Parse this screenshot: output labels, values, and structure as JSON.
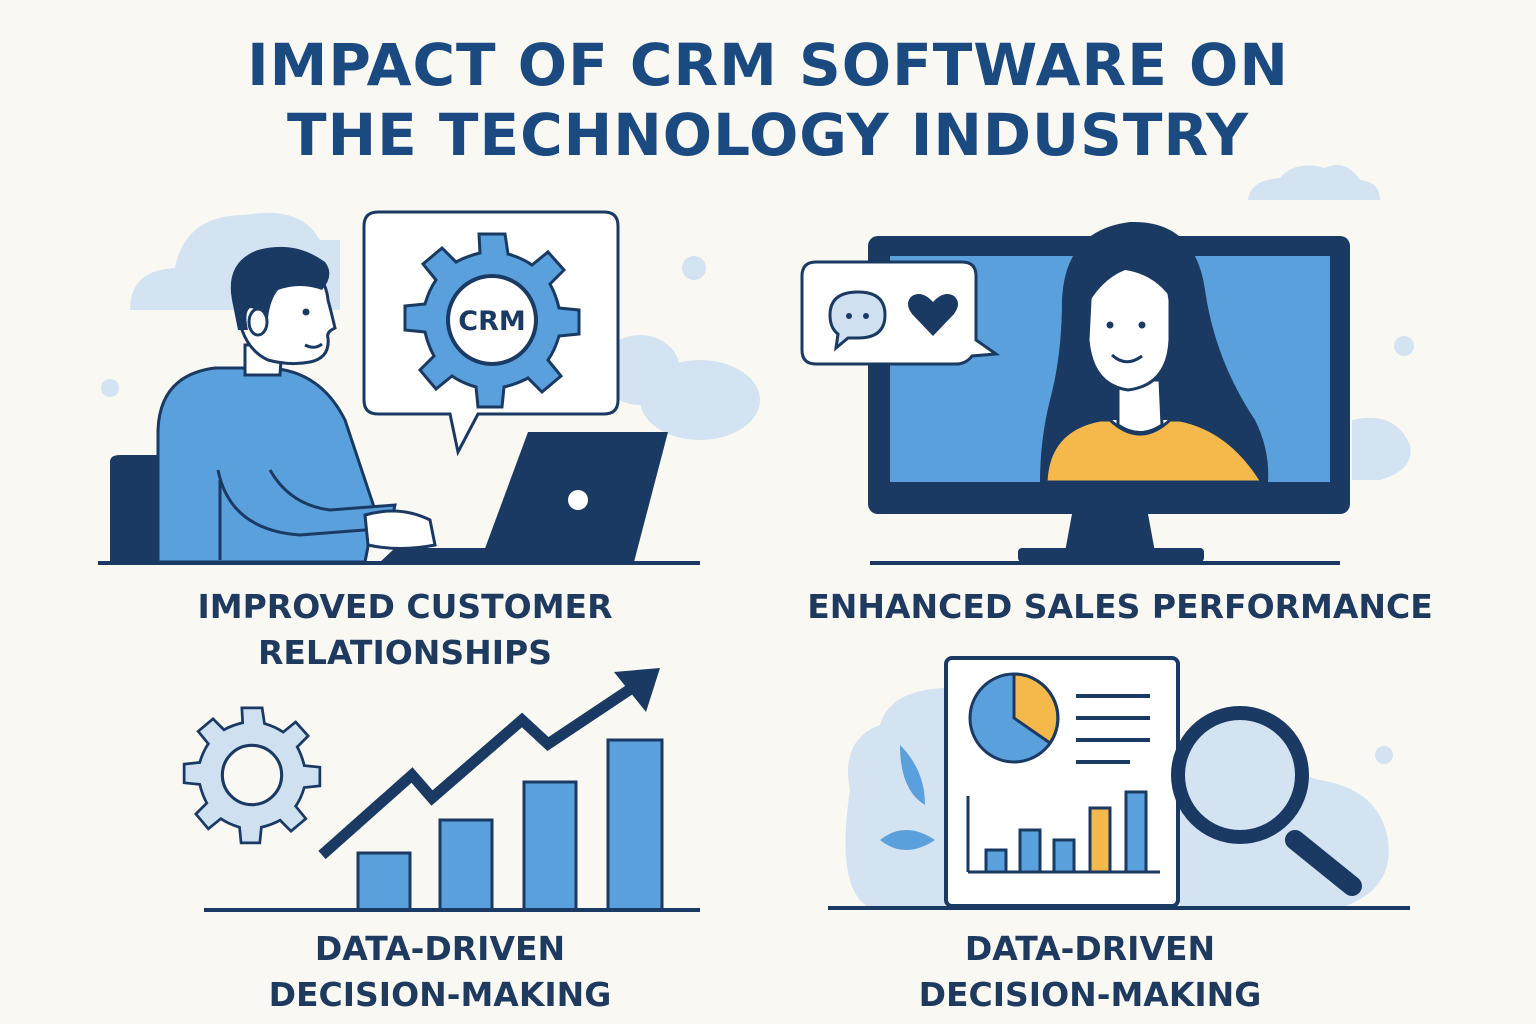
{
  "title": {
    "line1": "IMPACT OF CRM SOFTWARE ON",
    "line2": "THE TECHNOLOGY INDUSTRY"
  },
  "panels": [
    {
      "caption_line1": "IMPROVED CUSTOMER",
      "caption_line2": "RELATIONSHIPS",
      "badge": "CRM",
      "icons": [
        "person-icon",
        "laptop-icon",
        "gear-icon",
        "speech-bubble-icon",
        "cloud-icon"
      ]
    },
    {
      "caption_line1": "ENHANCED SALES PERFORMANCE",
      "icons": [
        "monitor-icon",
        "woman-icon",
        "chat-icon",
        "heart-icon"
      ]
    },
    {
      "caption_line1": "DATA-DRIVEN",
      "caption_line2": "DECISION-MAKING",
      "icons": [
        "gear-icon",
        "trend-arrow-icon",
        "bar-chart-icon"
      ]
    },
    {
      "caption_line1": "DATA-DRIVEN",
      "caption_line2": "DECISION-MAKING",
      "icons": [
        "report-icon",
        "pie-chart-icon",
        "bar-chart-icon",
        "magnifier-icon",
        "leaf-icon"
      ]
    }
  ],
  "colors": {
    "navy": "#1a3a63",
    "blue": "#5aa0dc",
    "light_blue": "#cfe0f0",
    "orange": "#f5b84a",
    "background": "#faf8f3"
  }
}
